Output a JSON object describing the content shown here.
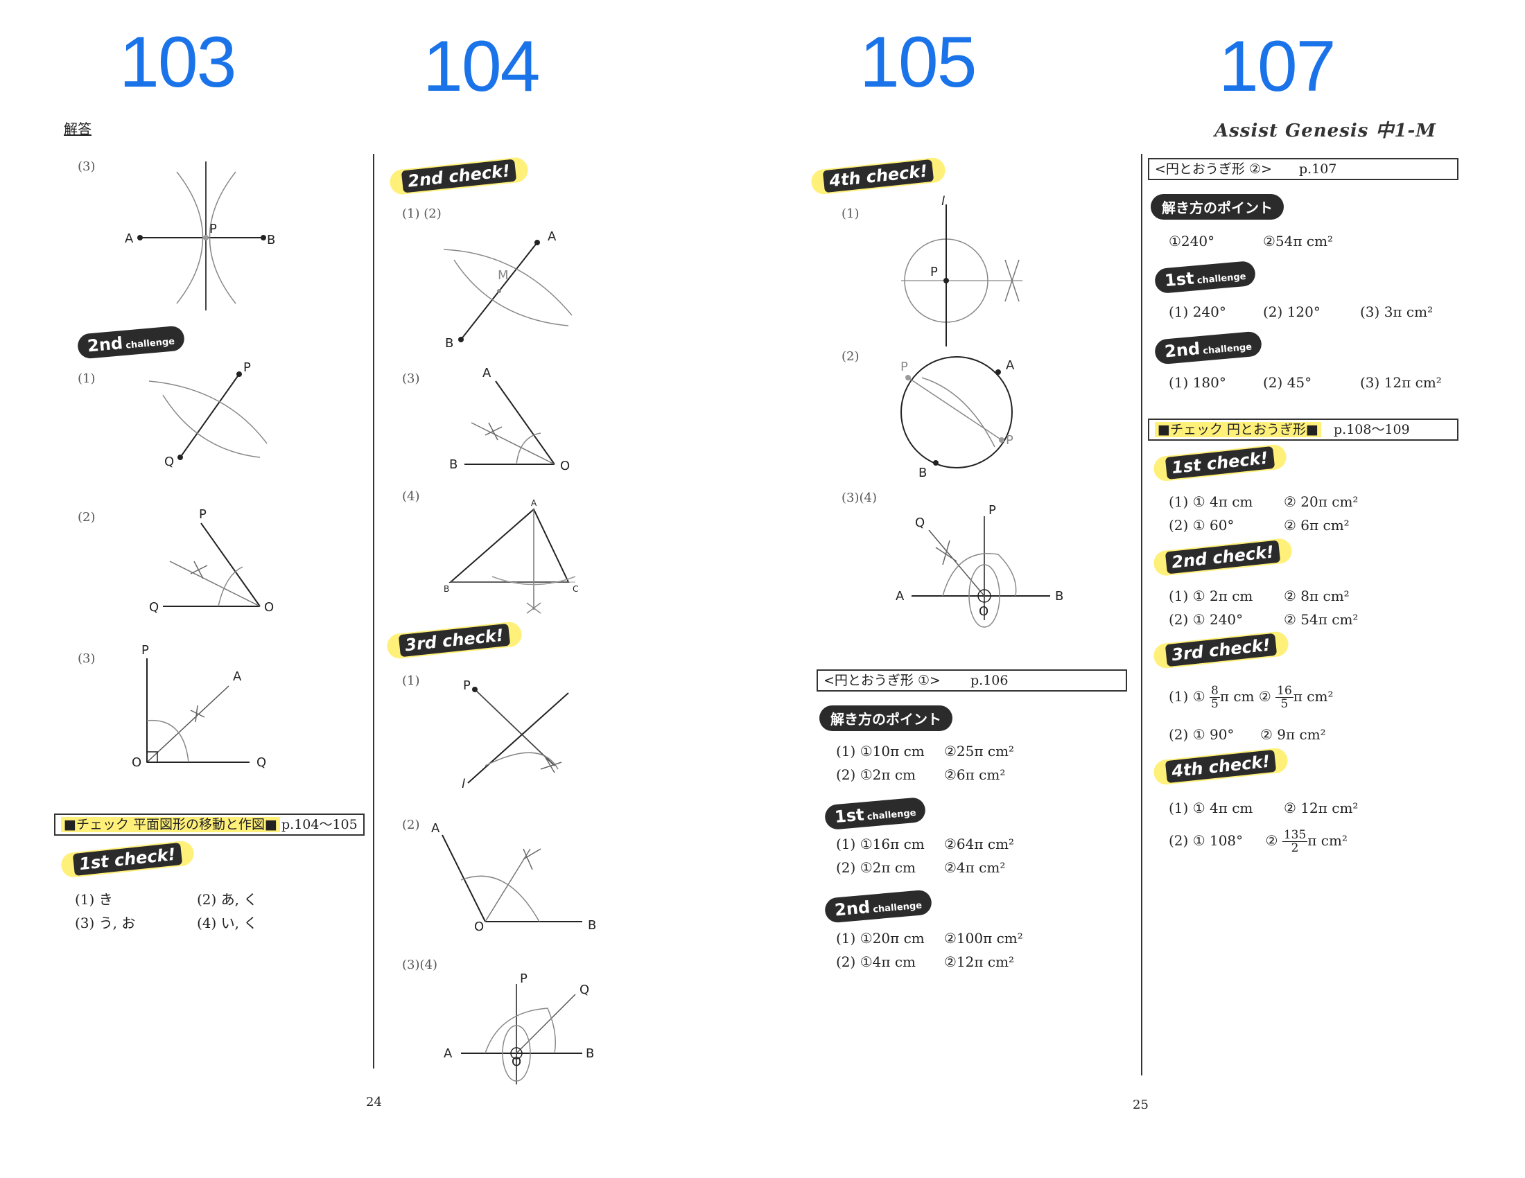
{
  "page_labels": [
    "103",
    "104",
    "105",
    "107"
  ],
  "footer": {
    "left": "24",
    "right": "25"
  },
  "header": {
    "answer_label": "解答",
    "brand": "Assist Genesis 中1-M"
  },
  "col1": {
    "q3_label": "(3)",
    "fig_q3": {
      "A": "A",
      "B": "B",
      "P": "P"
    },
    "challenge2": {
      "main": "2nd",
      "sub": "challenge"
    },
    "q1_label": "(1)",
    "fig1": {
      "P": "P",
      "Q": "Q"
    },
    "q2_label": "(2)",
    "fig2": {
      "P": "P",
      "Q": "Q",
      "O": "O"
    },
    "q3b_label": "(3)",
    "fig3": {
      "P": "P",
      "A": "A",
      "O": "O",
      "Q": "Q"
    },
    "check_box": {
      "title": "■チェック 平面図形の移動と作図■",
      "page": "p.104〜105"
    },
    "check1": "1st check!",
    "answers": [
      "(1) き",
      "(2) あ, く",
      "(3) う, お",
      "(4) い, く"
    ]
  },
  "col2": {
    "check2": "2nd check!",
    "q12_label": "(1) (2)",
    "fig12": {
      "A": "A",
      "B": "B",
      "M": "M"
    },
    "q3_label": "(3)",
    "fig3": {
      "A": "A",
      "B": "B",
      "O": "O"
    },
    "q4_label": "(4)",
    "fig4": {
      "A": "A",
      "B": "B",
      "C": "C"
    },
    "check3": "3rd check!",
    "r1_label": "(1)",
    "figr1": {
      "P": "P",
      "l": "l"
    },
    "r2_label": "(2)",
    "figr2": {
      "A": "A",
      "O": "O",
      "B": "B"
    },
    "r34_label": "(3)(4)",
    "figr34": {
      "P": "P",
      "Q": "Q",
      "A": "A",
      "B": "B",
      "O": "O"
    }
  },
  "col3": {
    "check4": "4th check!",
    "q1_label": "(1)",
    "fig1": {
      "P": "P",
      "l": "l"
    },
    "q2_label": "(2)",
    "fig2": {
      "P1": "P",
      "A": "A",
      "P2": "P",
      "B": "B"
    },
    "q34_label": "(3)(4)",
    "fig34": {
      "P": "P",
      "Q": "Q",
      "A": "A",
      "B": "B",
      "O": "O"
    },
    "box": {
      "title": "<円とおうぎ形 ①>",
      "page": "p.106"
    },
    "point": "解き方のポイント",
    "pt_answers": [
      [
        "(1) ①10π cm",
        "②25π cm²"
      ],
      [
        "(2) ①2π cm",
        "②6π cm²"
      ]
    ],
    "ch1": {
      "main": "1st",
      "sub": "challenge"
    },
    "ch1_answers": [
      [
        "(1) ①16π cm",
        "②64π cm²"
      ],
      [
        "(2) ①2π cm",
        "②4π cm²"
      ]
    ],
    "ch2": {
      "main": "2nd",
      "sub": "challenge"
    },
    "ch2_answers": [
      [
        "(1) ①20π cm",
        "②100π cm²"
      ],
      [
        "(2) ①4π cm",
        "②12π cm²"
      ]
    ]
  },
  "col4": {
    "box1": {
      "title": "<円とおうぎ形 ②>",
      "page": "p.107"
    },
    "point": "解き方のポイント",
    "pt_answers": [
      "①240°",
      "②54π cm²"
    ],
    "ch1": {
      "main": "1st",
      "sub": "challenge"
    },
    "ch1_answers": [
      "(1) 240°",
      "(2) 120°",
      "(3) 3π cm²"
    ],
    "ch2": {
      "main": "2nd",
      "sub": "challenge"
    },
    "ch2_answers": [
      "(1) 180°",
      "(2) 45°",
      "(3) 12π cm²"
    ],
    "box2": {
      "title": "■チェック 円とおうぎ形■",
      "page": "p.108〜109"
    },
    "check1": "1st check!",
    "c1_answers": [
      [
        "(1) ① 4π cm",
        "② 20π cm²"
      ],
      [
        "(2) ① 60°",
        "② 6π cm²"
      ]
    ],
    "check2": "2nd check!",
    "c2_answers": [
      [
        "(1) ① 2π cm",
        "② 8π cm²"
      ],
      [
        "(2) ① 240°",
        "② 54π cm²"
      ]
    ],
    "check3": "3rd check!",
    "c3": {
      "r1_prefix": "(1) ①",
      "f1_n": "8",
      "f1_d": "5",
      "f1_tail": "π cm",
      "mid": "②",
      "f2_n": "16",
      "f2_d": "5",
      "f2_tail": "π cm²",
      "r2_a": "(2) ① 90°",
      "r2_b": "② 9π cm²"
    },
    "check4": "4th check!",
    "c4": {
      "r1_a": "(1) ① 4π cm",
      "r1_b": "② 12π cm²",
      "r2_a": "(2) ① 108°",
      "r2_mid": "②",
      "f_n": "135",
      "f_d": "2",
      "f_tail": "π cm²"
    }
  }
}
